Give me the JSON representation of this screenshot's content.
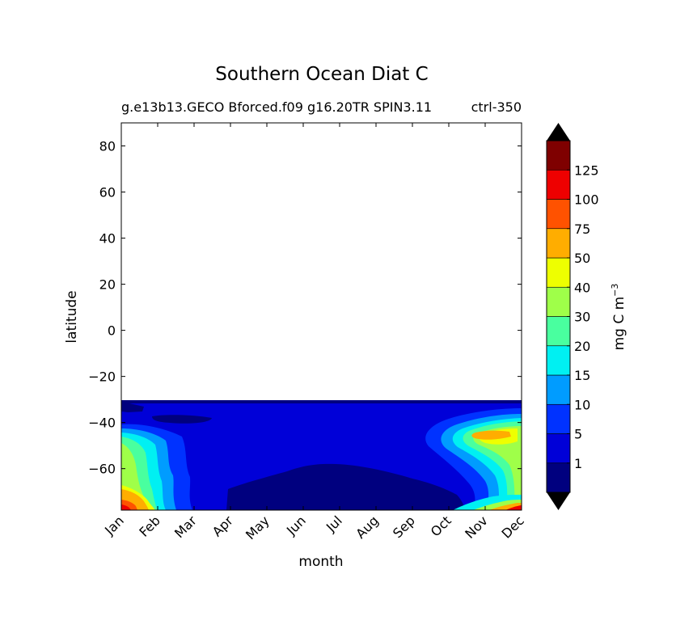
{
  "chart_data": {
    "type": "heatmap",
    "title": "Southern Ocean Diat C",
    "subtitle_left": "g.e13b13.GECO Bforced.f09 g16.20TR SPIN3.11",
    "subtitle_right": "ctrl-350",
    "xlabel": "month",
    "ylabel": "latitude",
    "x_categories": [
      "Jan",
      "Feb",
      "Mar",
      "Apr",
      "May",
      "Jun",
      "Jul",
      "Aug",
      "Sep",
      "Oct",
      "Nov",
      "Dec"
    ],
    "y_ticks": [
      "80",
      "60",
      "40",
      "20",
      "0",
      "−20",
      "−40",
      "−60"
    ],
    "ylim": [
      -78,
      90
    ],
    "grid": false,
    "colorbar": {
      "label": "mg C m",
      "label_exponent": "−3",
      "tick_labels": [
        "1",
        "5",
        "10",
        "15",
        "20",
        "30",
        "40",
        "50",
        "75",
        "100",
        "125"
      ],
      "levels": [
        1,
        5,
        10,
        15,
        20,
        30,
        40,
        50,
        75,
        100,
        125
      ],
      "colors": [
        "#00007f",
        "#0000d8",
        "#0032ff",
        "#009cff",
        "#00f0f2",
        "#49ff9f",
        "#9fff49",
        "#eeff00",
        "#ffad00",
        "#ff5200",
        "#ee0000",
        "#7f0000"
      ],
      "extend": "both"
    },
    "data_extent": {
      "lat_max": -32,
      "lat_min": -78
    },
    "features": [
      {
        "name": "low-diatom-core",
        "class": "<1",
        "months": [
          "Apr",
          "Oct"
        ],
        "lat_range": [
          -78,
          -60
        ]
      },
      {
        "name": "spring-bloom-peak",
        "class": "50-75",
        "months": [
          "Nov"
        ],
        "lat_range": [
          -48,
          -44
        ]
      },
      {
        "name": "coastal-summer-bloom",
        "class": "75-100",
        "months": [
          "Jan"
        ],
        "lat_range": [
          -78,
          -72
        ]
      },
      {
        "name": "coastal-dec-bloom",
        "class": "100-125",
        "months": [
          "Dec"
        ],
        "lat_range": [
          -78,
          -76
        ]
      }
    ]
  }
}
